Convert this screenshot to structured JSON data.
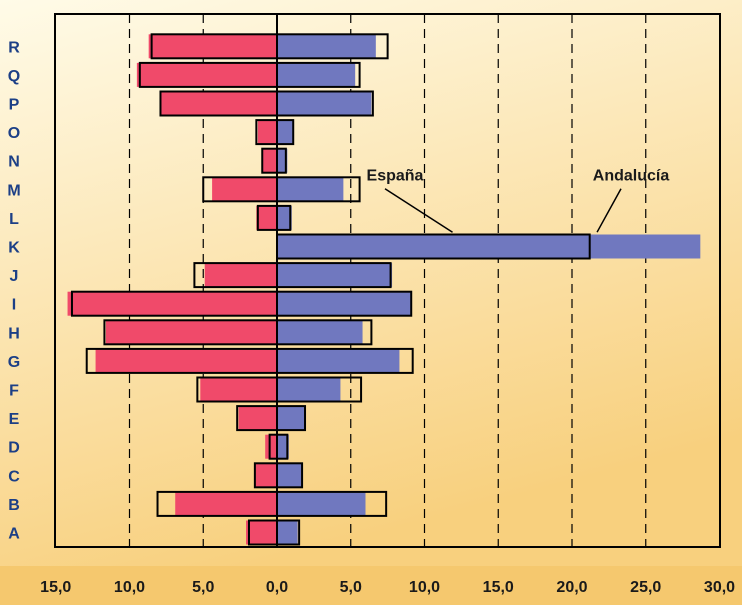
{
  "colors": {
    "background_top": "#fffbe8",
    "background_bottom": "#f8d07e",
    "axis_band": "#f5c86e",
    "andalucia_left": "#f04a6a",
    "andalucia_right": "#7078bf",
    "espana_outline": "#000000",
    "category_text": "#1c3f86"
  },
  "chart_data": {
    "type": "bar",
    "orientation": "horizontal-pyramid",
    "categories": [
      "A",
      "B",
      "C",
      "D",
      "E",
      "F",
      "G",
      "H",
      "I",
      "J",
      "K",
      "L",
      "M",
      "N",
      "O",
      "P",
      "Q",
      "R"
    ],
    "x_tick_labels": [
      "15,0",
      "10,0",
      "5,0",
      "0,0",
      "5,0",
      "10,0",
      "15,0",
      "20,0",
      "25,0",
      "30,0"
    ],
    "xlim": [
      -15,
      30
    ],
    "grid": "vertical-dashed",
    "legend": "annotations",
    "series": [
      {
        "name": "Andalucía",
        "style": "filled",
        "left": [
          2.1,
          6.9,
          1.5,
          0.8,
          2.6,
          5.2,
          12.3,
          11.6,
          14.2,
          4.9,
          0.0,
          1.4,
          4.4,
          1.0,
          1.3,
          7.9,
          9.5,
          8.7
        ],
        "right": [
          1.4,
          6.0,
          1.7,
          0.8,
          1.9,
          4.3,
          8.3,
          5.8,
          9.1,
          7.8,
          28.7,
          1.0,
          4.5,
          0.7,
          1.1,
          6.4,
          5.3,
          6.7
        ]
      },
      {
        "name": "España",
        "style": "outline",
        "left": [
          1.9,
          8.1,
          1.5,
          0.5,
          2.7,
          5.4,
          12.9,
          11.7,
          13.9,
          5.6,
          0.0,
          1.3,
          5.0,
          1.0,
          1.4,
          7.9,
          9.3,
          8.5
        ],
        "right": [
          1.5,
          7.4,
          1.7,
          0.7,
          1.9,
          5.7,
          9.2,
          6.4,
          9.1,
          7.7,
          21.2,
          0.9,
          5.6,
          0.6,
          1.1,
          6.5,
          5.6,
          7.5
        ]
      }
    ],
    "annotations": [
      {
        "text": "España",
        "label_at": [
          8,
          12.3
        ],
        "points_to": [
          11.9,
          10.5
        ]
      },
      {
        "text": "Andalucía",
        "label_at": [
          24,
          12.3
        ],
        "points_to": [
          21.7,
          10.5
        ]
      }
    ]
  }
}
